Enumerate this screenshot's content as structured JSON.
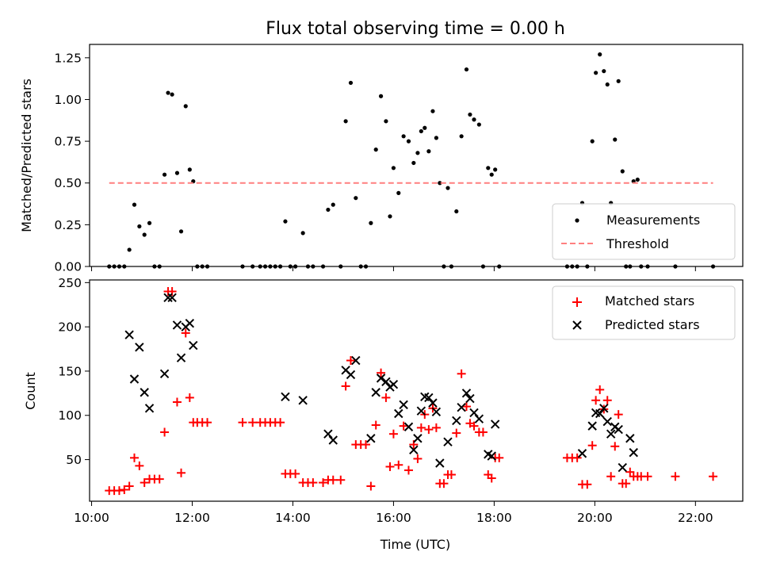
{
  "chart_data": [
    {
      "type": "scatter",
      "title": "Flux total observing time = 0.00 h",
      "xlabel": "",
      "ylabel": "Matched/Predicted stars",
      "xlim": [
        9.96,
        22.94
      ],
      "ylim": [
        0,
        1.33
      ],
      "yticks": [
        0,
        0.25,
        0.5,
        0.75,
        1.0,
        1.25
      ],
      "ytick_labels": [
        "0.00",
        "0.25",
        "0.50",
        "0.75",
        "1.00",
        "1.25"
      ],
      "xticks": [
        10,
        12,
        14,
        16,
        18,
        20,
        22
      ],
      "grid": false,
      "legend": "lower-right",
      "series": [
        {
          "name": "Measurements",
          "color": "#000000",
          "marker": "dot",
          "points": [
            [
              10.35,
              0
            ],
            [
              10.45,
              0
            ],
            [
              10.55,
              0
            ],
            [
              10.65,
              0
            ],
            [
              10.75,
              0.1
            ],
            [
              10.85,
              0.37
            ],
            [
              10.95,
              0.24
            ],
            [
              11.05,
              0.19
            ],
            [
              11.15,
              0.26
            ],
            [
              11.25,
              0
            ],
            [
              11.35,
              0
            ],
            [
              11.45,
              0.55
            ],
            [
              11.52,
              1.04
            ],
            [
              11.6,
              1.03
            ],
            [
              11.7,
              0.56
            ],
            [
              11.78,
              0.21
            ],
            [
              11.87,
              0.96
            ],
            [
              11.95,
              0.58
            ],
            [
              12.02,
              0.51
            ],
            [
              12.1,
              0
            ],
            [
              12.2,
              0
            ],
            [
              12.3,
              0
            ],
            [
              13.0,
              0
            ],
            [
              13.2,
              0
            ],
            [
              13.35,
              0
            ],
            [
              13.45,
              0
            ],
            [
              13.55,
              0
            ],
            [
              13.65,
              0
            ],
            [
              13.75,
              0
            ],
            [
              13.85,
              0.27
            ],
            [
              13.95,
              0
            ],
            [
              14.05,
              0
            ],
            [
              14.2,
              0.2
            ],
            [
              14.3,
              0
            ],
            [
              14.4,
              0
            ],
            [
              14.6,
              0
            ],
            [
              14.7,
              0.34
            ],
            [
              14.8,
              0.37
            ],
            [
              14.95,
              0
            ],
            [
              15.05,
              0.87
            ],
            [
              15.15,
              1.1
            ],
            [
              15.25,
              0.41
            ],
            [
              15.35,
              0
            ],
            [
              15.45,
              0
            ],
            [
              15.55,
              0.26
            ],
            [
              15.65,
              0.7
            ],
            [
              15.75,
              1.02
            ],
            [
              15.85,
              0.87
            ],
            [
              15.93,
              0.3
            ],
            [
              16.0,
              0.59
            ],
            [
              16.1,
              0.44
            ],
            [
              16.2,
              0.78
            ],
            [
              16.3,
              0.75
            ],
            [
              16.4,
              0.62
            ],
            [
              16.48,
              0.68
            ],
            [
              16.55,
              0.81
            ],
            [
              16.62,
              0.83
            ],
            [
              16.7,
              0.69
            ],
            [
              16.78,
              0.93
            ],
            [
              16.85,
              0.77
            ],
            [
              16.92,
              0.5
            ],
            [
              17.0,
              0
            ],
            [
              17.08,
              0.47
            ],
            [
              17.15,
              0
            ],
            [
              17.25,
              0.33
            ],
            [
              17.35,
              0.78
            ],
            [
              17.45,
              1.18
            ],
            [
              17.52,
              0.91
            ],
            [
              17.6,
              0.88
            ],
            [
              17.7,
              0.85
            ],
            [
              17.78,
              0
            ],
            [
              17.88,
              0.59
            ],
            [
              17.95,
              0.55
            ],
            [
              18.02,
              0.58
            ],
            [
              18.1,
              0
            ],
            [
              19.45,
              0
            ],
            [
              19.55,
              0
            ],
            [
              19.65,
              0
            ],
            [
              19.75,
              0.38
            ],
            [
              19.85,
              0
            ],
            [
              19.95,
              0.75
            ],
            [
              20.02,
              1.16
            ],
            [
              20.1,
              1.27
            ],
            [
              20.18,
              1.17
            ],
            [
              20.25,
              1.09
            ],
            [
              20.32,
              0.38
            ],
            [
              20.4,
              0.76
            ],
            [
              20.47,
              1.11
            ],
            [
              20.55,
              0.57
            ],
            [
              20.62,
              0
            ],
            [
              20.7,
              0
            ],
            [
              20.77,
              0.51
            ],
            [
              20.85,
              0.52
            ],
            [
              20.92,
              0
            ],
            [
              21.05,
              0
            ],
            [
              21.6,
              0
            ],
            [
              22.35,
              0
            ]
          ]
        },
        {
          "name": "Threshold",
          "color": "#ff7f7f",
          "style": "dashed",
          "points": [
            [
              10.35,
              0.5
            ],
            [
              22.35,
              0.5
            ]
          ]
        }
      ]
    },
    {
      "type": "scatter",
      "title": "",
      "xlabel": "Time (UTC)",
      "ylabel": "Count",
      "xlim": [
        9.96,
        22.94
      ],
      "ylim": [
        3,
        253
      ],
      "yticks": [
        50,
        100,
        150,
        200,
        250
      ],
      "ytick_labels": [
        "50",
        "100",
        "150",
        "200",
        "250"
      ],
      "xticks": [
        10,
        12,
        14,
        16,
        18,
        20,
        22
      ],
      "xtick_labels": [
        "10:00",
        "12:00",
        "14:00",
        "16:00",
        "18:00",
        "20:00",
        "22:00"
      ],
      "grid": false,
      "legend": "top-right",
      "series": [
        {
          "name": "Matched stars",
          "color": "#ff0000",
          "marker": "plus",
          "points": [
            [
              10.35,
              15
            ],
            [
              10.45,
              15
            ],
            [
              10.55,
              15
            ],
            [
              10.65,
              16
            ],
            [
              10.75,
              20
            ],
            [
              10.85,
              52
            ],
            [
              10.95,
              43
            ],
            [
              11.05,
              24
            ],
            [
              11.15,
              28
            ],
            [
              11.25,
              28
            ],
            [
              11.35,
              28
            ],
            [
              11.45,
              81
            ],
            [
              11.52,
              240
            ],
            [
              11.6,
              240
            ],
            [
              11.7,
              115
            ],
            [
              11.78,
              35
            ],
            [
              11.87,
              193
            ],
            [
              11.95,
              120
            ],
            [
              12.02,
              92
            ],
            [
              12.1,
              92
            ],
            [
              12.2,
              92
            ],
            [
              12.3,
              92
            ],
            [
              13.0,
              92
            ],
            [
              13.2,
              92
            ],
            [
              13.35,
              92
            ],
            [
              13.45,
              92
            ],
            [
              13.55,
              92
            ],
            [
              13.65,
              92
            ],
            [
              13.75,
              92
            ],
            [
              13.85,
              34
            ],
            [
              13.95,
              34
            ],
            [
              14.05,
              34
            ],
            [
              14.2,
              24
            ],
            [
              14.3,
              24
            ],
            [
              14.4,
              24
            ],
            [
              14.6,
              24
            ],
            [
              14.7,
              27
            ],
            [
              14.8,
              27
            ],
            [
              14.95,
              27
            ],
            [
              15.05,
              133
            ],
            [
              15.15,
              162
            ],
            [
              15.25,
              67
            ],
            [
              15.35,
              67
            ],
            [
              15.45,
              67
            ],
            [
              15.55,
              20
            ],
            [
              15.65,
              89
            ],
            [
              15.75,
              148
            ],
            [
              15.85,
              120
            ],
            [
              15.93,
              42
            ],
            [
              16.0,
              79
            ],
            [
              16.1,
              44
            ],
            [
              16.2,
              88
            ],
            [
              16.3,
              38
            ],
            [
              16.4,
              67
            ],
            [
              16.48,
              51
            ],
            [
              16.55,
              86
            ],
            [
              16.62,
              101
            ],
            [
              16.7,
              84
            ],
            [
              16.78,
              108
            ],
            [
              16.85,
              86
            ],
            [
              16.92,
              23
            ],
            [
              17.0,
              23
            ],
            [
              17.08,
              33
            ],
            [
              17.15,
              33
            ],
            [
              17.25,
              80
            ],
            [
              17.35,
              147
            ],
            [
              17.45,
              110
            ],
            [
              17.52,
              91
            ],
            [
              17.6,
              88
            ],
            [
              17.7,
              81
            ],
            [
              17.78,
              81
            ],
            [
              17.88,
              33
            ],
            [
              17.95,
              29
            ],
            [
              18.02,
              52
            ],
            [
              18.1,
              52
            ],
            [
              19.45,
              52
            ],
            [
              19.55,
              52
            ],
            [
              19.65,
              52
            ],
            [
              19.75,
              22
            ],
            [
              19.85,
              22
            ],
            [
              19.95,
              66
            ],
            [
              20.02,
              117
            ],
            [
              20.1,
              129
            ],
            [
              20.18,
              107
            ],
            [
              20.25,
              117
            ],
            [
              20.32,
              31
            ],
            [
              20.4,
              65
            ],
            [
              20.47,
              101
            ],
            [
              20.55,
              23
            ],
            [
              20.62,
              23
            ],
            [
              20.7,
              36
            ],
            [
              20.77,
              31
            ],
            [
              20.85,
              31
            ],
            [
              20.92,
              31
            ],
            [
              21.05,
              31
            ],
            [
              21.6,
              31
            ],
            [
              22.35,
              31
            ]
          ]
        },
        {
          "name": "Predicted stars",
          "color": "#000000",
          "marker": "x",
          "points": [
            [
              10.75,
              191
            ],
            [
              10.85,
              141
            ],
            [
              10.95,
              177
            ],
            [
              11.05,
              126
            ],
            [
              11.15,
              108
            ],
            [
              11.45,
              147
            ],
            [
              11.52,
              233
            ],
            [
              11.6,
              233
            ],
            [
              11.7,
              202
            ],
            [
              11.78,
              165
            ],
            [
              11.87,
              200
            ],
            [
              11.95,
              204
            ],
            [
              12.02,
              179
            ],
            [
              13.85,
              121
            ],
            [
              14.2,
              117
            ],
            [
              14.7,
              79
            ],
            [
              14.8,
              72
            ],
            [
              15.05,
              151
            ],
            [
              15.15,
              146
            ],
            [
              15.25,
              162
            ],
            [
              15.55,
              74
            ],
            [
              15.65,
              126
            ],
            [
              15.75,
              142
            ],
            [
              15.85,
              138
            ],
            [
              15.93,
              132
            ],
            [
              16.0,
              135
            ],
            [
              16.1,
              102
            ],
            [
              16.2,
              112
            ],
            [
              16.3,
              87
            ],
            [
              16.4,
              61
            ],
            [
              16.48,
              74
            ],
            [
              16.55,
              105
            ],
            [
              16.62,
              121
            ],
            [
              16.7,
              120
            ],
            [
              16.78,
              114
            ],
            [
              16.85,
              104
            ],
            [
              16.92,
              46
            ],
            [
              17.08,
              70
            ],
            [
              17.25,
              94
            ],
            [
              17.35,
              109
            ],
            [
              17.45,
              125
            ],
            [
              17.52,
              119
            ],
            [
              17.6,
              103
            ],
            [
              17.7,
              96
            ],
            [
              17.88,
              56
            ],
            [
              17.95,
              54
            ],
            [
              18.02,
              90
            ],
            [
              19.75,
              57
            ],
            [
              19.95,
              88
            ],
            [
              20.02,
              103
            ],
            [
              20.1,
              102
            ],
            [
              20.18,
              108
            ],
            [
              20.25,
              93
            ],
            [
              20.32,
              79
            ],
            [
              20.4,
              87
            ],
            [
              20.47,
              84
            ],
            [
              20.55,
              41
            ],
            [
              20.7,
              74
            ],
            [
              20.77,
              58
            ]
          ]
        }
      ]
    }
  ]
}
